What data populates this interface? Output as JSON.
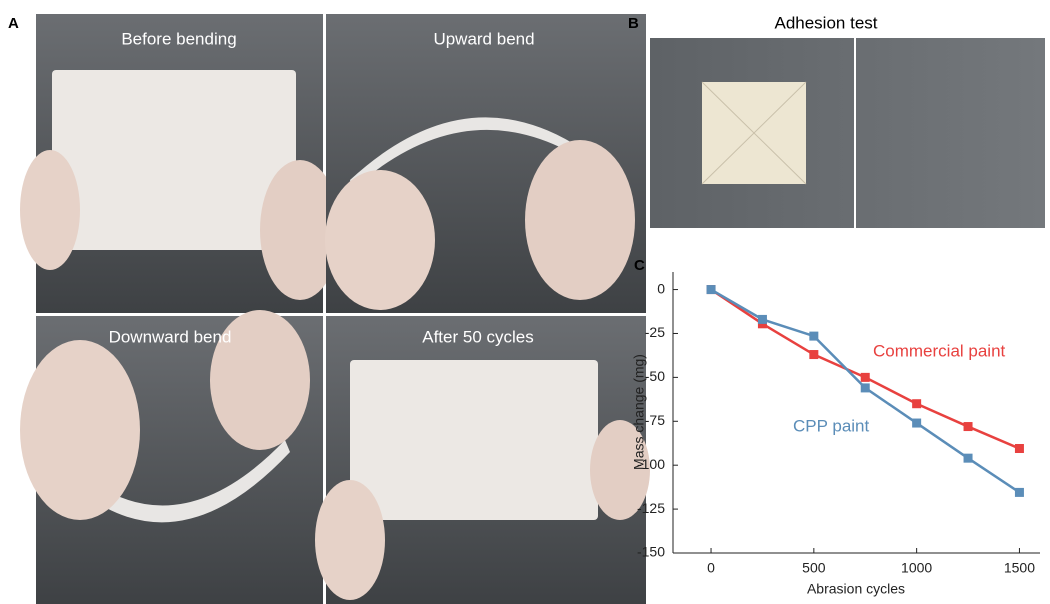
{
  "panel_a": {
    "label": "A",
    "photos": [
      "Before bending",
      "Upward bend",
      "Downward bend",
      "After 50 cycles"
    ]
  },
  "panel_b": {
    "label": "B",
    "title": "Adhesion test"
  },
  "chart_data": {
    "type": "line",
    "panel_label": "C",
    "x_label": "Abrasion cycles",
    "y_label": "Mass change (mg)",
    "x": [
      0,
      250,
      500,
      750,
      1000,
      1250,
      1500
    ],
    "series": [
      {
        "name": "Commercial paint",
        "color": "#e8413f",
        "values": [
          0,
          -19.5,
          -37,
          -50,
          -65,
          -78,
          -90.5
        ]
      },
      {
        "name": "CPP paint",
        "color": "#5b8db8",
        "values": [
          0,
          -17,
          -26.5,
          -56,
          -76,
          -96,
          -115.5
        ]
      }
    ],
    "xlim": [
      -185,
      1600
    ],
    "ylim": [
      -150,
      10
    ],
    "xticks": [
      0,
      500,
      1000,
      1500
    ],
    "yticks": [
      -150,
      -125,
      -100,
      -75,
      -50,
      -25,
      0
    ]
  }
}
